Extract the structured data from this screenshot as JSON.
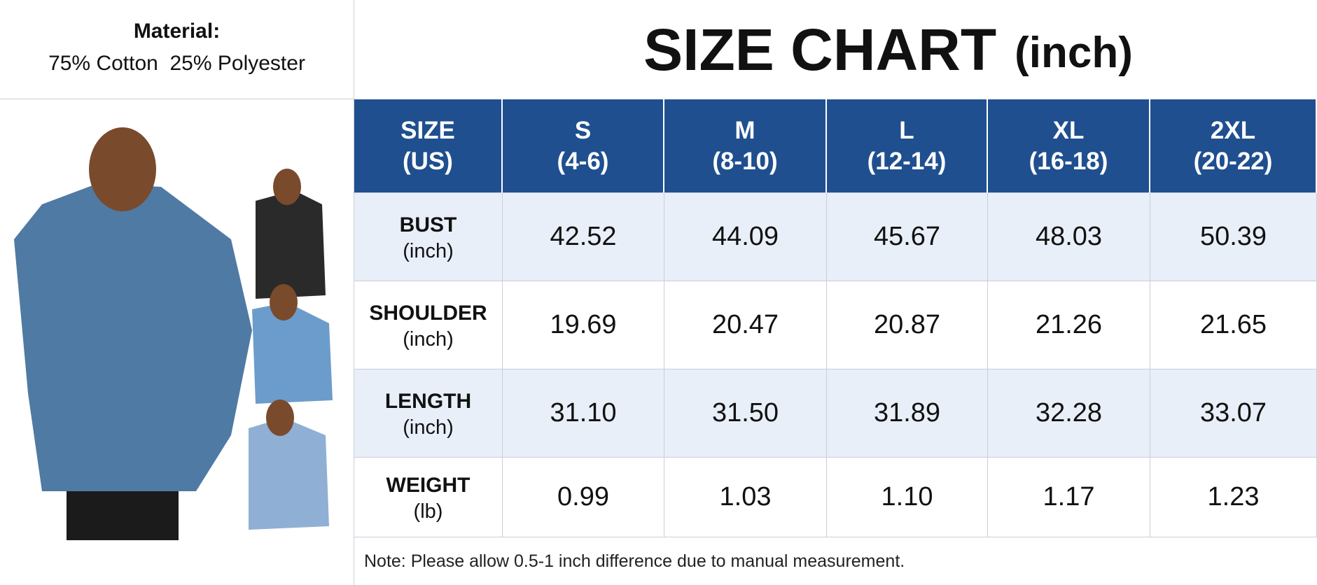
{
  "material": {
    "label": "Material:",
    "text": "75% Cotton  25% Polyester"
  },
  "header": {
    "title": "SIZE CHART",
    "unit": "(inch)"
  },
  "table": {
    "columns": [
      {
        "label": "SIZE",
        "sub": "(US)"
      },
      {
        "label": "S",
        "sub": "(4-6)"
      },
      {
        "label": "M",
        "sub": "(8-10)"
      },
      {
        "label": "L",
        "sub": "(12-14)"
      },
      {
        "label": "XL",
        "sub": "(16-18)"
      },
      {
        "label": "2XL",
        "sub": "(20-22)"
      }
    ],
    "rows": [
      {
        "label": "BUST",
        "unit": "(inch)",
        "values": [
          "42.52",
          "44.09",
          "45.67",
          "48.03",
          "50.39"
        ]
      },
      {
        "label": "SHOULDER",
        "unit": "(inch)",
        "values": [
          "19.69",
          "20.47",
          "20.87",
          "21.26",
          "21.65"
        ]
      },
      {
        "label": "LENGTH",
        "unit": "(inch)",
        "values": [
          "31.10",
          "31.50",
          "31.89",
          "32.28",
          "33.07"
        ]
      },
      {
        "label": "WEIGHT",
        "unit": "(lb)",
        "values": [
          "0.99",
          "1.03",
          "1.10",
          "1.17",
          "1.23"
        ]
      }
    ],
    "note": "Note: Please allow 0.5-1 inch difference due to manual measurement."
  }
}
